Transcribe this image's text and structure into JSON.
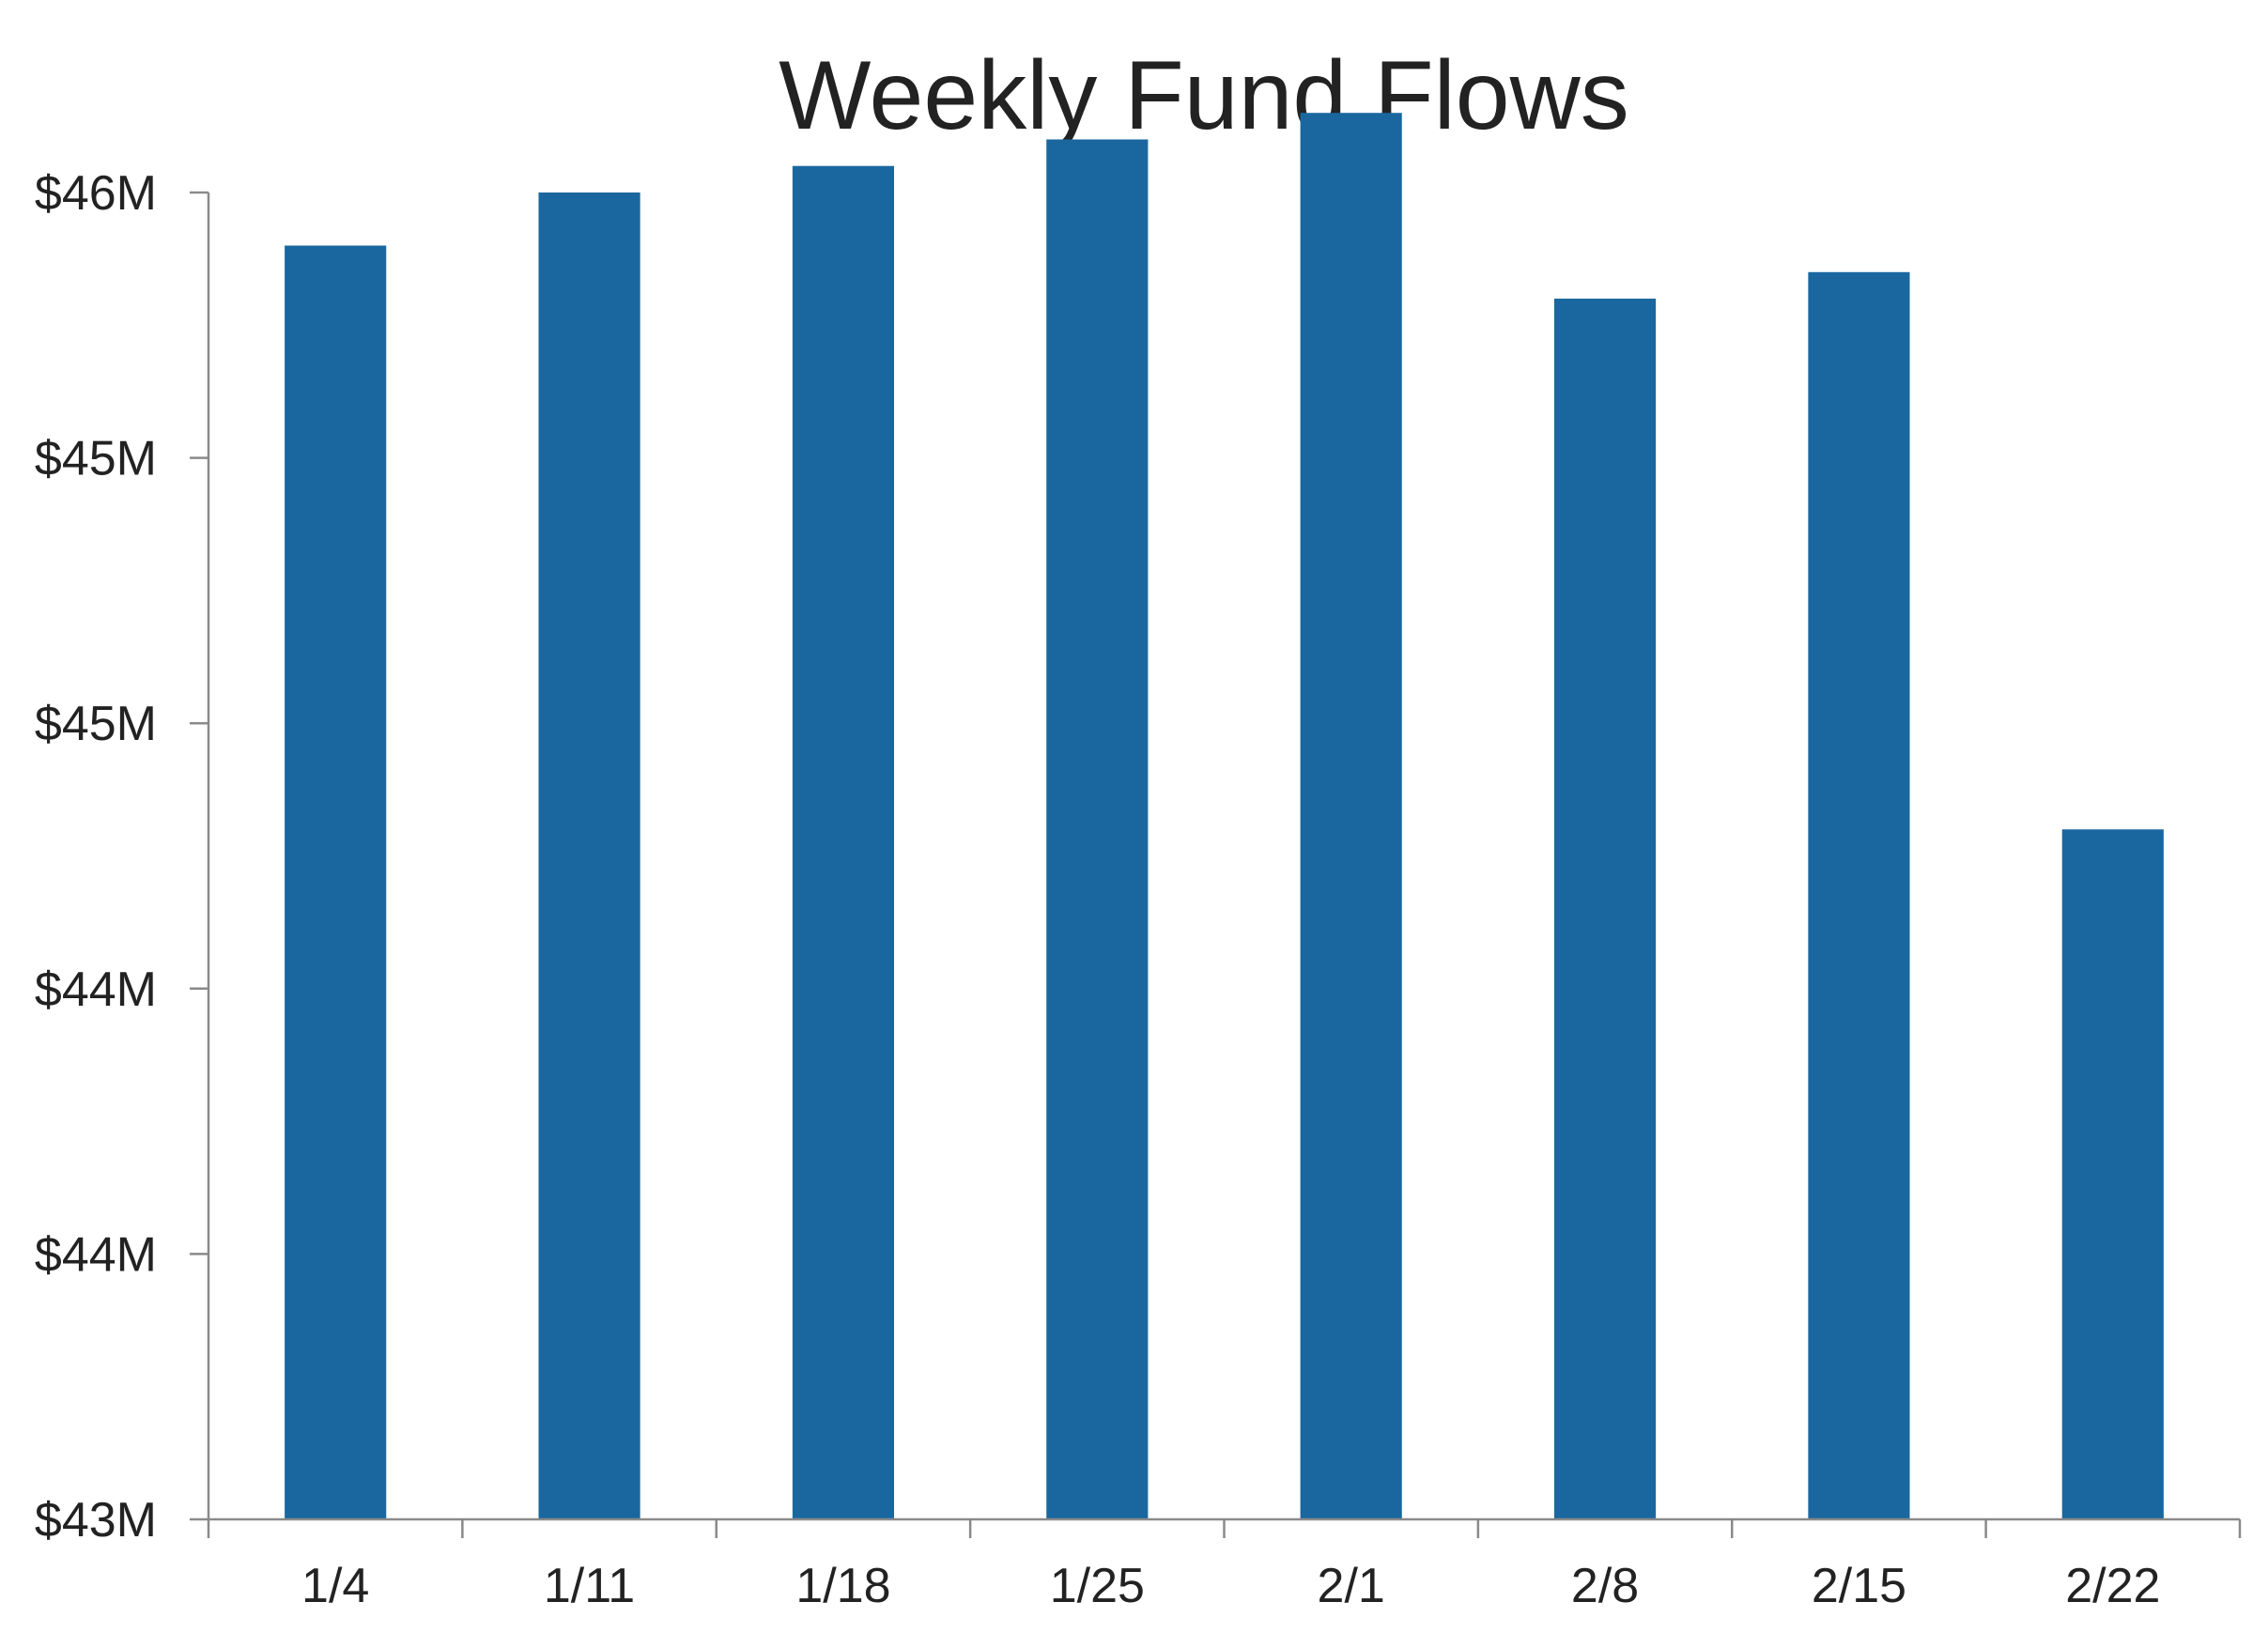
{
  "chart_data": {
    "type": "bar",
    "title": "Weekly Fund Flows",
    "xlabel": "",
    "ylabel": "",
    "categories": [
      "1/4",
      "1/11",
      "1/18",
      "1/25",
      "2/1",
      "2/8",
      "2/15",
      "2/22"
    ],
    "values": [
      45.4,
      45.5,
      45.55,
      45.6,
      45.65,
      45.3,
      45.35,
      44.3
    ],
    "ylim": [
      43,
      45.5
    ],
    "y_ticks": [
      {
        "value": 43.0,
        "label": "$43M"
      },
      {
        "value": 43.5,
        "label": "$44M"
      },
      {
        "value": 44.0,
        "label": "$44M"
      },
      {
        "value": 44.5,
        "label": "$45M"
      },
      {
        "value": 45.0,
        "label": "$45M"
      },
      {
        "value": 45.5,
        "label": "$46M"
      }
    ],
    "grid": false,
    "legend": "none",
    "colors": {
      "bar": "#1a679f",
      "axis": "#8a8a8a",
      "text": "#222222"
    }
  }
}
